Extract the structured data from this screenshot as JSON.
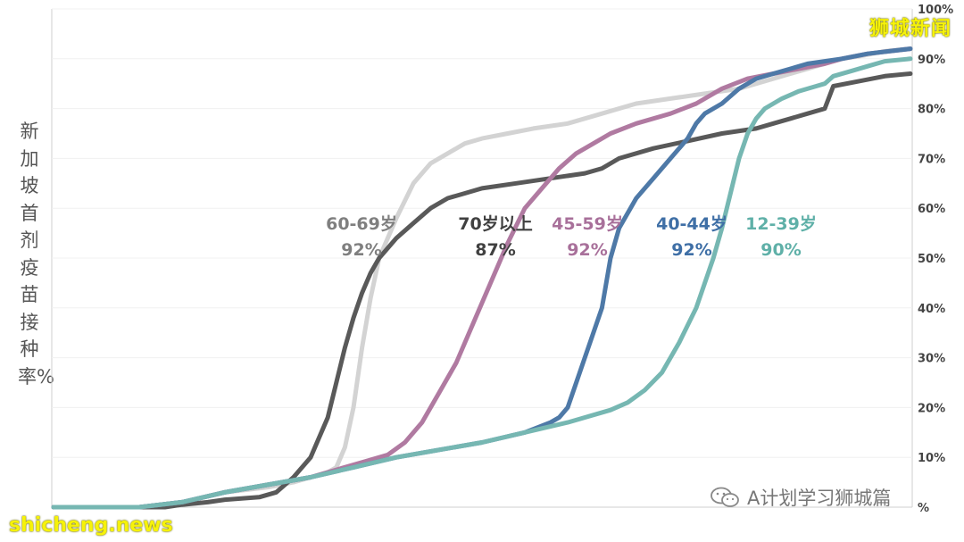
{
  "watermarks": {
    "top_right": "狮城新闻",
    "bottom_left": "shicheng.news",
    "wechat": "A计划学习狮城篇"
  },
  "chart_data": {
    "type": "line",
    "title": "",
    "xlabel": "",
    "ylabel": "新加坡首剂疫苗接种率%",
    "ylim": [
      0,
      100
    ],
    "yticks": [
      "%",
      "10%",
      "20%",
      "30%",
      "40%",
      "50%",
      "60%",
      "70%",
      "80%",
      "90%",
      "100%"
    ],
    "x_domain": [
      0,
      100
    ],
    "grid": true,
    "series": [
      {
        "name": "60-69岁",
        "label_value": "92%",
        "color": "#d3d3d3",
        "label_color": "#7f7f7f",
        "points": [
          [
            0,
            0
          ],
          [
            10,
            0
          ],
          [
            15,
            1
          ],
          [
            20,
            3
          ],
          [
            25,
            4
          ],
          [
            28,
            5
          ],
          [
            30,
            6
          ],
          [
            32,
            7
          ],
          [
            33,
            8
          ],
          [
            34,
            12
          ],
          [
            35,
            20
          ],
          [
            36,
            32
          ],
          [
            37,
            42
          ],
          [
            38,
            50
          ],
          [
            40,
            58
          ],
          [
            42,
            65
          ],
          [
            44,
            69
          ],
          [
            46,
            71
          ],
          [
            48,
            73
          ],
          [
            50,
            74
          ],
          [
            53,
            75
          ],
          [
            56,
            76
          ],
          [
            60,
            77
          ],
          [
            64,
            79
          ],
          [
            68,
            81
          ],
          [
            72,
            82
          ],
          [
            76,
            83
          ],
          [
            80,
            84
          ],
          [
            84,
            86
          ],
          [
            86,
            87
          ],
          [
            88,
            88
          ],
          [
            90,
            89
          ],
          [
            92,
            90
          ],
          [
            94,
            90.5
          ],
          [
            97,
            91.5
          ],
          [
            100,
            92
          ]
        ]
      },
      {
        "name": "70岁以上",
        "label_value": "87%",
        "color": "#595959",
        "label_color": "#404040",
        "points": [
          [
            0,
            0
          ],
          [
            10,
            0
          ],
          [
            13,
            0
          ],
          [
            15,
            0.5
          ],
          [
            18,
            1
          ],
          [
            20,
            1.5
          ],
          [
            24,
            2
          ],
          [
            26,
            3
          ],
          [
            28,
            6
          ],
          [
            30,
            10
          ],
          [
            31,
            14
          ],
          [
            32,
            18
          ],
          [
            33,
            25
          ],
          [
            34,
            32
          ],
          [
            35,
            38
          ],
          [
            36,
            43
          ],
          [
            37,
            47
          ],
          [
            38,
            50
          ],
          [
            40,
            54
          ],
          [
            42,
            57
          ],
          [
            44,
            60
          ],
          [
            46,
            62
          ],
          [
            48,
            63
          ],
          [
            50,
            64
          ],
          [
            54,
            65
          ],
          [
            58,
            66
          ],
          [
            62,
            67
          ],
          [
            64,
            68
          ],
          [
            66,
            70
          ],
          [
            70,
            72
          ],
          [
            74,
            73.5
          ],
          [
            78,
            75
          ],
          [
            82,
            76
          ],
          [
            84,
            77
          ],
          [
            86,
            78
          ],
          [
            88,
            79
          ],
          [
            90,
            80
          ],
          [
            91,
            84.5
          ],
          [
            94,
            85.5
          ],
          [
            97,
            86.5
          ],
          [
            100,
            87
          ]
        ]
      },
      {
        "name": "45-59岁",
        "label_value": "92%",
        "color": "#b07aa1",
        "label_color": "#a8709a",
        "points": [
          [
            0,
            0
          ],
          [
            10,
            0
          ],
          [
            15,
            1
          ],
          [
            20,
            3
          ],
          [
            25,
            4.5
          ],
          [
            30,
            6
          ],
          [
            33,
            7.5
          ],
          [
            36,
            9
          ],
          [
            39,
            10.5
          ],
          [
            41,
            13
          ],
          [
            43,
            17
          ],
          [
            45,
            23
          ],
          [
            47,
            29
          ],
          [
            49,
            37
          ],
          [
            51,
            45
          ],
          [
            53,
            53
          ],
          [
            55,
            60
          ],
          [
            57,
            64
          ],
          [
            59,
            68
          ],
          [
            61,
            71
          ],
          [
            63,
            73
          ],
          [
            65,
            75
          ],
          [
            68,
            77
          ],
          [
            72,
            79
          ],
          [
            75,
            81
          ],
          [
            78,
            84
          ],
          [
            81,
            86
          ],
          [
            84,
            87
          ],
          [
            87,
            88
          ],
          [
            90,
            89
          ],
          [
            92,
            90
          ],
          [
            95,
            91
          ],
          [
            100,
            92
          ]
        ]
      },
      {
        "name": "40-44岁",
        "label_value": "92%",
        "color": "#4e79a7",
        "label_color": "#3f6fa6",
        "points": [
          [
            0,
            0
          ],
          [
            10,
            0
          ],
          [
            15,
            1
          ],
          [
            20,
            3
          ],
          [
            25,
            4.5
          ],
          [
            30,
            6
          ],
          [
            35,
            8
          ],
          [
            40,
            10
          ],
          [
            45,
            11.5
          ],
          [
            50,
            13
          ],
          [
            55,
            15
          ],
          [
            58,
            17
          ],
          [
            59,
            18
          ],
          [
            60,
            20
          ],
          [
            61,
            25
          ],
          [
            62,
            30
          ],
          [
            63,
            35
          ],
          [
            64,
            40
          ],
          [
            65,
            50
          ],
          [
            66,
            56
          ],
          [
            67,
            59
          ],
          [
            68,
            62
          ],
          [
            70,
            66
          ],
          [
            72,
            70
          ],
          [
            74,
            74
          ],
          [
            75,
            77
          ],
          [
            76,
            79
          ],
          [
            78,
            81
          ],
          [
            80,
            84
          ],
          [
            82,
            86
          ],
          [
            84,
            87
          ],
          [
            86,
            88
          ],
          [
            88,
            89
          ],
          [
            90,
            89.5
          ],
          [
            92,
            90
          ],
          [
            95,
            91
          ],
          [
            100,
            92
          ]
        ]
      },
      {
        "name": "12-39岁",
        "label_value": "90%",
        "color": "#76b7b2",
        "label_color": "#5fb0a8",
        "points": [
          [
            0,
            0
          ],
          [
            10,
            0
          ],
          [
            15,
            1
          ],
          [
            20,
            3
          ],
          [
            25,
            4.5
          ],
          [
            30,
            6
          ],
          [
            35,
            8
          ],
          [
            40,
            10
          ],
          [
            45,
            11.5
          ],
          [
            50,
            13
          ],
          [
            55,
            15
          ],
          [
            60,
            17
          ],
          [
            65,
            19.5
          ],
          [
            67,
            21
          ],
          [
            69,
            23.5
          ],
          [
            71,
            27
          ],
          [
            73,
            33
          ],
          [
            75,
            40
          ],
          [
            76,
            45
          ],
          [
            77,
            50
          ],
          [
            78,
            56
          ],
          [
            79,
            63
          ],
          [
            80,
            70
          ],
          [
            81,
            75
          ],
          [
            82,
            78
          ],
          [
            83,
            80
          ],
          [
            85,
            82
          ],
          [
            87,
            83.5
          ],
          [
            89,
            84.5
          ],
          [
            90,
            85
          ],
          [
            91,
            86.5
          ],
          [
            93,
            87.5
          ],
          [
            95,
            88.5
          ],
          [
            97,
            89.5
          ],
          [
            100,
            90
          ]
        ]
      }
    ]
  }
}
